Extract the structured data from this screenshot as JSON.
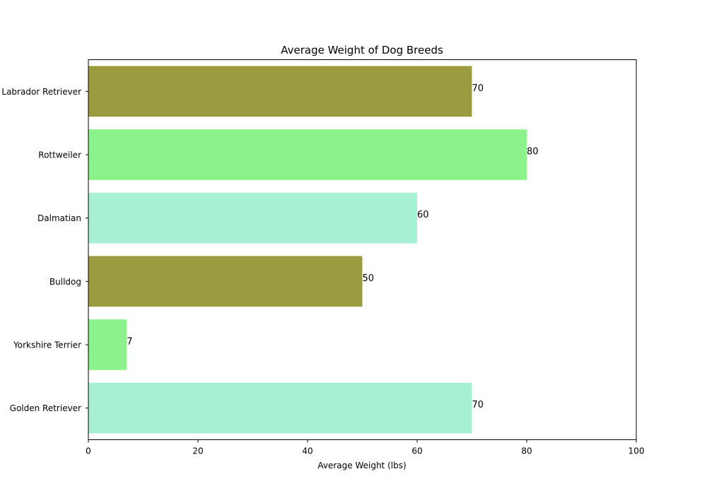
{
  "chart_data": {
    "type": "bar",
    "orientation": "horizontal",
    "title": "Average Weight of Dog Breeds",
    "xlabel": "Average Weight (lbs)",
    "ylabel": "",
    "xlim": [
      0,
      100
    ],
    "x_ticks": [
      0,
      20,
      40,
      60,
      80,
      100
    ],
    "grid": false,
    "categories": [
      "Golden Retriever",
      "Yorkshire Terrier",
      "Bulldog",
      "Dalmatian",
      "Rottweiler",
      "Labrador Retriever"
    ],
    "values": [
      70,
      7,
      50,
      60,
      80,
      70
    ],
    "bar_colors": [
      "#a8f0d4",
      "#8cf28c",
      "#9b9b40",
      "#a8f0d4",
      "#8cf28c",
      "#9b9b40"
    ],
    "data_labels": [
      "70",
      "7",
      "50",
      "60",
      "80",
      "70"
    ]
  }
}
